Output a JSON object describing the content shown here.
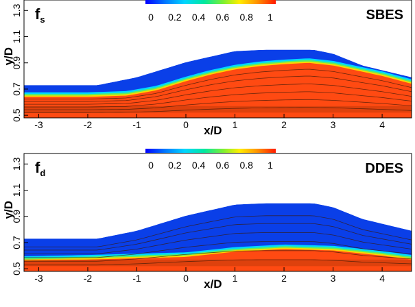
{
  "chart_data": [
    {
      "type": "heatmap",
      "model": "SBES",
      "variable": "f",
      "variable_subscript": "s",
      "xlabel": "x/D",
      "ylabel": "y/D",
      "xlim": [
        -3.3,
        4.6
      ],
      "ylim": [
        0.48,
        1.38
      ],
      "xticks": [
        "-3",
        "-2",
        "-1",
        "0",
        "1",
        "2",
        "3",
        "4"
      ],
      "yticks": [
        "0.5",
        "0.7",
        "0.9",
        "1.1",
        "1.3"
      ],
      "colorbar": {
        "min": 0,
        "max": 1,
        "ticks": [
          "0",
          "0.2",
          "0.4",
          "0.6",
          "0.8",
          "1"
        ]
      },
      "colors": {
        "low": "#0a3fe8",
        "high": "#ff4a12"
      },
      "wall_profile": {
        "x": [
          -3.3,
          -1.8,
          -1.0,
          0.0,
          1.0,
          1.6,
          2.6,
          3.0,
          3.6,
          4.6
        ],
        "y": [
          0.73,
          0.73,
          0.79,
          0.905,
          0.99,
          1.0,
          1.0,
          0.97,
          0.88,
          0.79
        ]
      },
      "high_region_top": {
        "x": [
          -3.3,
          -2.0,
          -1.2,
          -0.6,
          0.0,
          0.5,
          1.0,
          1.5,
          2.0,
          2.5,
          3.0,
          3.5,
          4.0,
          4.6
        ],
        "y": [
          0.64,
          0.64,
          0.65,
          0.69,
          0.76,
          0.81,
          0.85,
          0.875,
          0.89,
          0.9,
          0.88,
          0.84,
          0.8,
          0.74
        ]
      }
    },
    {
      "type": "heatmap",
      "model": "DDES",
      "variable": "f",
      "variable_subscript": "d",
      "xlabel": "x/D",
      "ylabel": "y/D",
      "xlim": [
        -3.3,
        4.6
      ],
      "ylim": [
        0.48,
        1.38
      ],
      "xticks": [
        "-3",
        "-2",
        "-1",
        "0",
        "1",
        "2",
        "3",
        "4"
      ],
      "yticks": [
        "0.5",
        "0.7",
        "0.9",
        "1.1",
        "1.3"
      ],
      "colorbar": {
        "min": 0,
        "max": 1,
        "ticks": [
          "0",
          "0.2",
          "0.4",
          "0.6",
          "0.8",
          "1"
        ]
      },
      "colors": {
        "low": "#0a3fe8",
        "high": "#ff4a12"
      },
      "wall_profile": {
        "x": [
          -3.3,
          -1.8,
          -1.0,
          0.0,
          1.0,
          1.6,
          2.6,
          3.0,
          3.6,
          4.6
        ],
        "y": [
          0.73,
          0.73,
          0.79,
          0.905,
          0.99,
          1.0,
          1.0,
          0.97,
          0.88,
          0.79
        ]
      },
      "high_region_top": {
        "x": [
          -3.3,
          -2.0,
          -1.0,
          0.0,
          0.5,
          1.0,
          2.0,
          3.0,
          3.5,
          4.0,
          4.6
        ],
        "y": [
          0.56,
          0.57,
          0.58,
          0.59,
          0.61,
          0.63,
          0.65,
          0.64,
          0.62,
          0.6,
          0.57
        ]
      }
    }
  ]
}
